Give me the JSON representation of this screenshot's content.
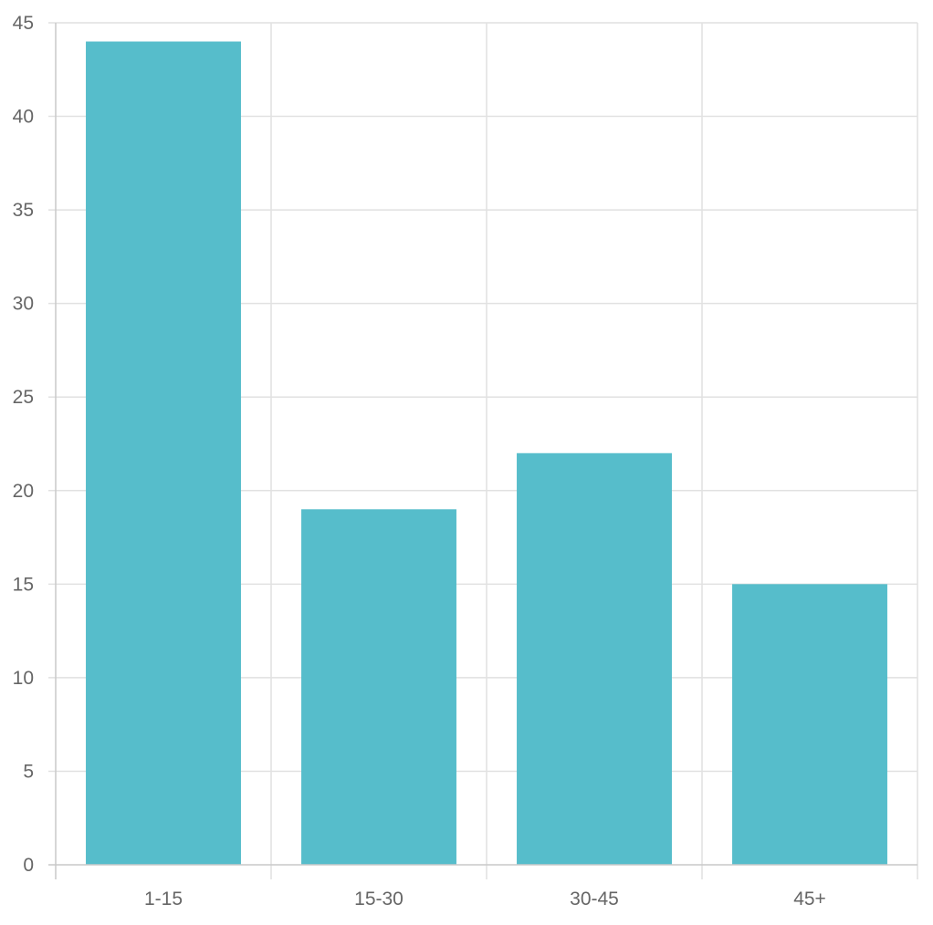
{
  "chart_data": {
    "type": "bar",
    "categories": [
      "1-15",
      "15-30",
      "30-45",
      "45+"
    ],
    "values": [
      44,
      19,
      22,
      15
    ],
    "title": "",
    "xlabel": "",
    "ylabel": "",
    "ylim": [
      0,
      45
    ],
    "y_ticks": [
      "0",
      "5",
      "10",
      "15",
      "20",
      "25",
      "30",
      "35",
      "40",
      "45"
    ],
    "grid": true,
    "legend": "none",
    "bar_color": "#56BDCB"
  }
}
